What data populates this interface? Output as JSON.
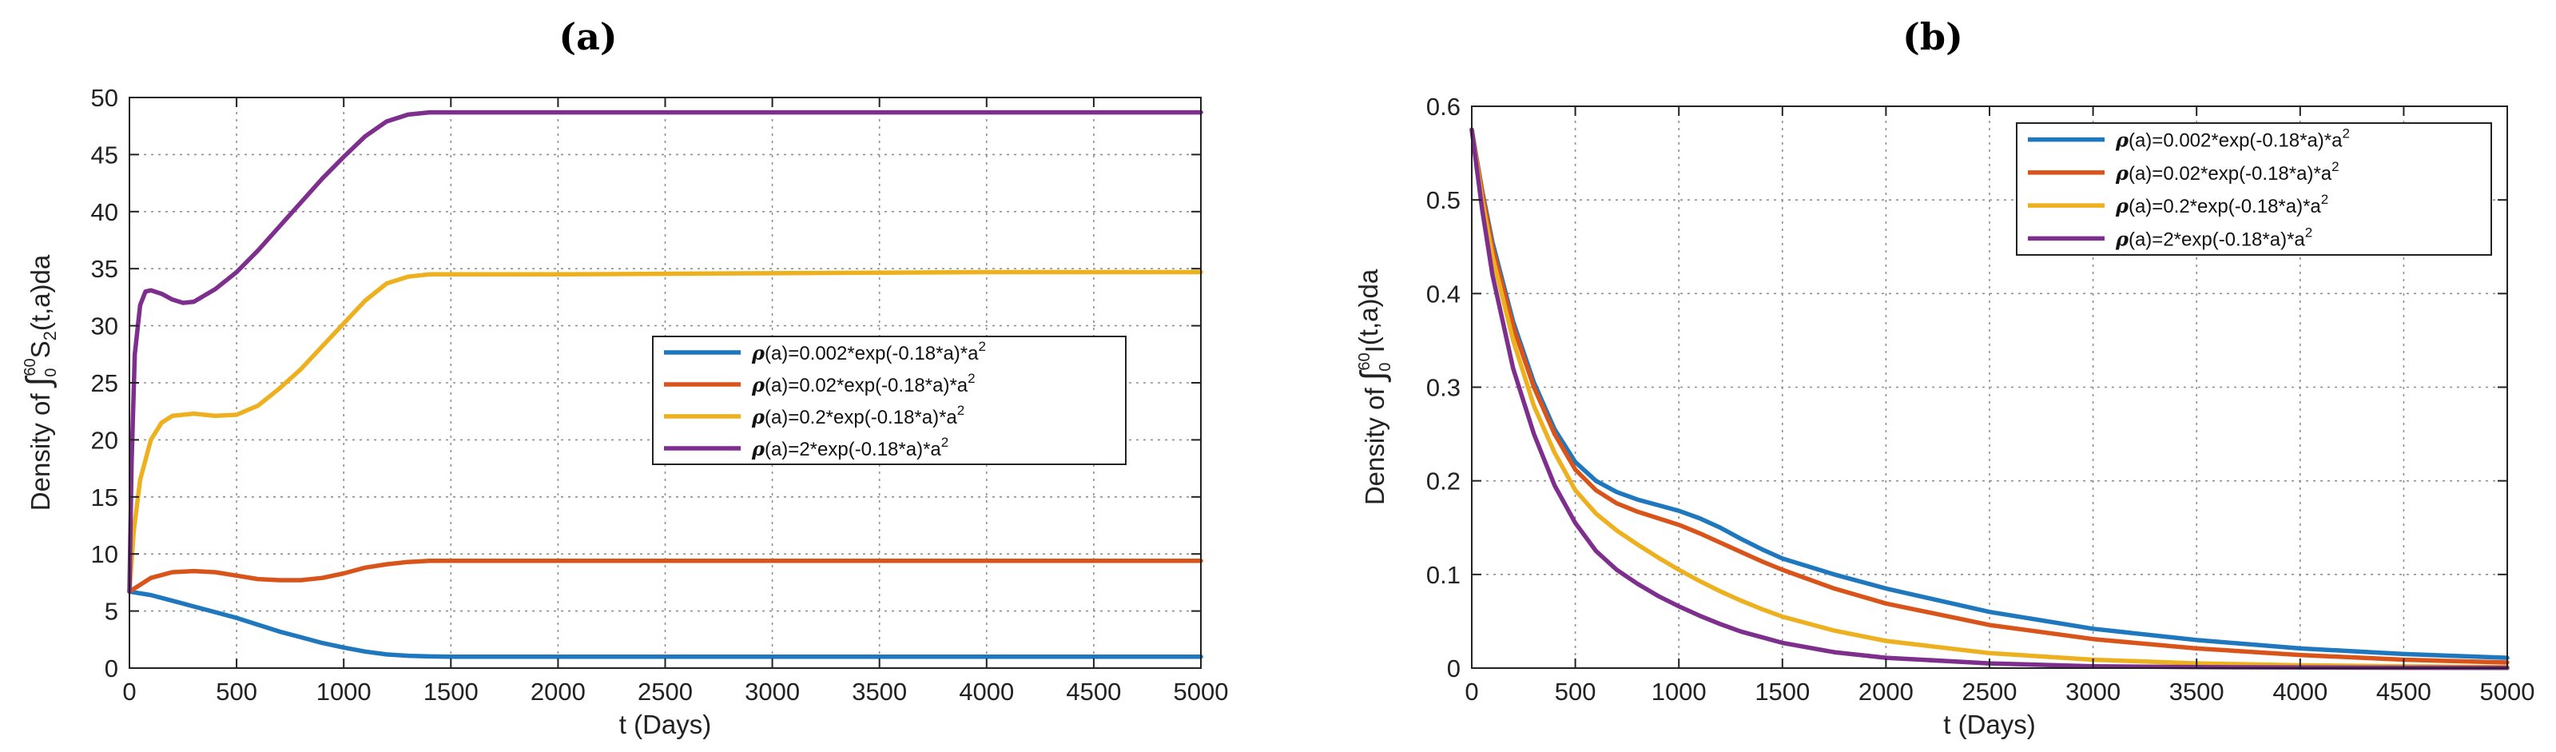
{
  "chart_data": [
    {
      "type": "line",
      "panel_label": "(a)",
      "xlabel": "t (Days)",
      "ylabel": {
        "prefix": "Density of ",
        "integral": "∫",
        "upper": "60",
        "lower": "0",
        "body": "S",
        "sub": "2",
        "suffix": "(t,a)da"
      },
      "xlim": [
        0,
        5000
      ],
      "ylim": [
        0,
        50
      ],
      "xticks": [
        0,
        500,
        1000,
        1500,
        2000,
        2500,
        3000,
        3500,
        4000,
        4500,
        5000
      ],
      "yticks": [
        0,
        5,
        10,
        15,
        20,
        25,
        30,
        35,
        40,
        45,
        50
      ],
      "grid": true,
      "legend_placement": "center-right",
      "series": [
        {
          "name": "(a)=0.002*exp(-0.18*a)*a",
          "color": "#1f77bd",
          "x": [
            0,
            100,
            200,
            300,
            400,
            500,
            600,
            700,
            800,
            900,
            1000,
            1100,
            1200,
            1300,
            1400,
            1500,
            2000,
            3000,
            4000,
            5000
          ],
          "y": [
            6.7,
            6.4,
            5.9,
            5.4,
            4.9,
            4.4,
            3.8,
            3.2,
            2.7,
            2.2,
            1.8,
            1.45,
            1.2,
            1.08,
            1.02,
            1.0,
            1.0,
            1.0,
            1.0,
            1.0
          ]
        },
        {
          "name": "(a)=0.02*exp(-0.18*a)*a",
          "color": "#d9541a",
          "x": [
            0,
            50,
            100,
            200,
            300,
            400,
            500,
            600,
            700,
            800,
            900,
            1000,
            1100,
            1200,
            1300,
            1400,
            1500,
            2000,
            3000,
            4000,
            5000
          ],
          "y": [
            6.7,
            7.3,
            7.9,
            8.4,
            8.5,
            8.4,
            8.1,
            7.8,
            7.7,
            7.7,
            7.9,
            8.3,
            8.8,
            9.1,
            9.3,
            9.4,
            9.4,
            9.4,
            9.4,
            9.4,
            9.4
          ]
        },
        {
          "name": "(a)=0.2*exp(-0.18*a)*a",
          "color": "#edb120",
          "x": [
            0,
            20,
            50,
            100,
            150,
            200,
            300,
            400,
            500,
            600,
            700,
            800,
            900,
            1000,
            1100,
            1200,
            1300,
            1400,
            1500,
            2000,
            3000,
            4000,
            5000
          ],
          "y": [
            6.7,
            12.0,
            16.5,
            20.0,
            21.5,
            22.1,
            22.3,
            22.1,
            22.2,
            23.0,
            24.5,
            26.2,
            28.2,
            30.2,
            32.2,
            33.7,
            34.3,
            34.5,
            34.5,
            34.5,
            34.6,
            34.7,
            34.7
          ]
        },
        {
          "name": "(a)=2*exp(-0.18*a)*a",
          "color": "#7e2f8e",
          "x": [
            0,
            10,
            25,
            50,
            75,
            100,
            150,
            200,
            250,
            300,
            400,
            500,
            600,
            700,
            800,
            900,
            1000,
            1100,
            1200,
            1300,
            1400,
            1500,
            2000,
            3000,
            4000,
            5000
          ],
          "y": [
            6.7,
            18.0,
            27.5,
            31.8,
            33.0,
            33.1,
            32.8,
            32.3,
            32.0,
            32.1,
            33.2,
            34.7,
            36.6,
            38.7,
            40.8,
            42.9,
            44.8,
            46.6,
            47.9,
            48.5,
            48.7,
            48.7,
            48.7,
            48.7,
            48.7,
            48.7
          ]
        }
      ]
    },
    {
      "type": "line",
      "panel_label": "(b)",
      "xlabel": "t (Days)",
      "ylabel": {
        "prefix": "Density of ",
        "integral": "∫",
        "upper": "60",
        "lower": "0",
        "body": "I",
        "sub": "",
        "suffix": "(t,a)da"
      },
      "xlim": [
        0,
        5000
      ],
      "ylim": [
        0,
        0.6
      ],
      "xticks": [
        0,
        500,
        1000,
        1500,
        2000,
        2500,
        3000,
        3500,
        4000,
        4500,
        5000
      ],
      "yticks": [
        0,
        0.1,
        0.2,
        0.3,
        0.4,
        0.5,
        0.6
      ],
      "grid": true,
      "legend_placement": "top-right",
      "series": [
        {
          "name": "(a)=0.002*exp(-0.18*a)*a",
          "color": "#1f77bd",
          "x": [
            0,
            50,
            100,
            200,
            300,
            400,
            500,
            600,
            700,
            800,
            900,
            1000,
            1100,
            1200,
            1300,
            1400,
            1500,
            1750,
            2000,
            2500,
            3000,
            3500,
            4000,
            4500,
            5000
          ],
          "y": [
            0.575,
            0.51,
            0.455,
            0.37,
            0.305,
            0.255,
            0.22,
            0.2,
            0.188,
            0.18,
            0.174,
            0.168,
            0.16,
            0.15,
            0.138,
            0.127,
            0.117,
            0.1,
            0.085,
            0.06,
            0.042,
            0.03,
            0.021,
            0.015,
            0.011
          ]
        },
        {
          "name": "(a)=0.02*exp(-0.18*a)*a",
          "color": "#d9541a",
          "x": [
            0,
            50,
            100,
            200,
            300,
            400,
            500,
            600,
            700,
            800,
            900,
            1000,
            1100,
            1200,
            1300,
            1400,
            1500,
            1750,
            2000,
            2500,
            3000,
            3500,
            4000,
            4500,
            5000
          ],
          "y": [
            0.575,
            0.508,
            0.45,
            0.365,
            0.3,
            0.25,
            0.212,
            0.19,
            0.176,
            0.167,
            0.16,
            0.153,
            0.144,
            0.134,
            0.124,
            0.114,
            0.105,
            0.085,
            0.069,
            0.046,
            0.031,
            0.021,
            0.014,
            0.009,
            0.006
          ]
        },
        {
          "name": "(a)=0.2*exp(-0.18*a)*a",
          "color": "#edb120",
          "x": [
            0,
            50,
            100,
            200,
            300,
            400,
            500,
            600,
            700,
            800,
            900,
            1000,
            1100,
            1200,
            1300,
            1400,
            1500,
            1750,
            2000,
            2500,
            3000,
            3500,
            4000,
            4500,
            5000
          ],
          "y": [
            0.575,
            0.5,
            0.44,
            0.35,
            0.28,
            0.23,
            0.19,
            0.165,
            0.147,
            0.132,
            0.118,
            0.105,
            0.093,
            0.082,
            0.072,
            0.063,
            0.055,
            0.04,
            0.029,
            0.016,
            0.009,
            0.005,
            0.003,
            0.002,
            0.001
          ]
        },
        {
          "name": "(a)=2*exp(-0.18*a)*a",
          "color": "#7e2f8e",
          "x": [
            0,
            50,
            100,
            200,
            300,
            400,
            500,
            600,
            700,
            800,
            900,
            1000,
            1100,
            1200,
            1300,
            1400,
            1500,
            1750,
            2000,
            2500,
            3000,
            3500,
            4000,
            4500,
            5000
          ],
          "y": [
            0.575,
            0.49,
            0.42,
            0.32,
            0.25,
            0.195,
            0.155,
            0.125,
            0.105,
            0.09,
            0.077,
            0.066,
            0.056,
            0.047,
            0.039,
            0.033,
            0.027,
            0.017,
            0.011,
            0.005,
            0.002,
            0.001,
            0.0006,
            0.0003,
            0.0002
          ]
        }
      ]
    }
  ]
}
